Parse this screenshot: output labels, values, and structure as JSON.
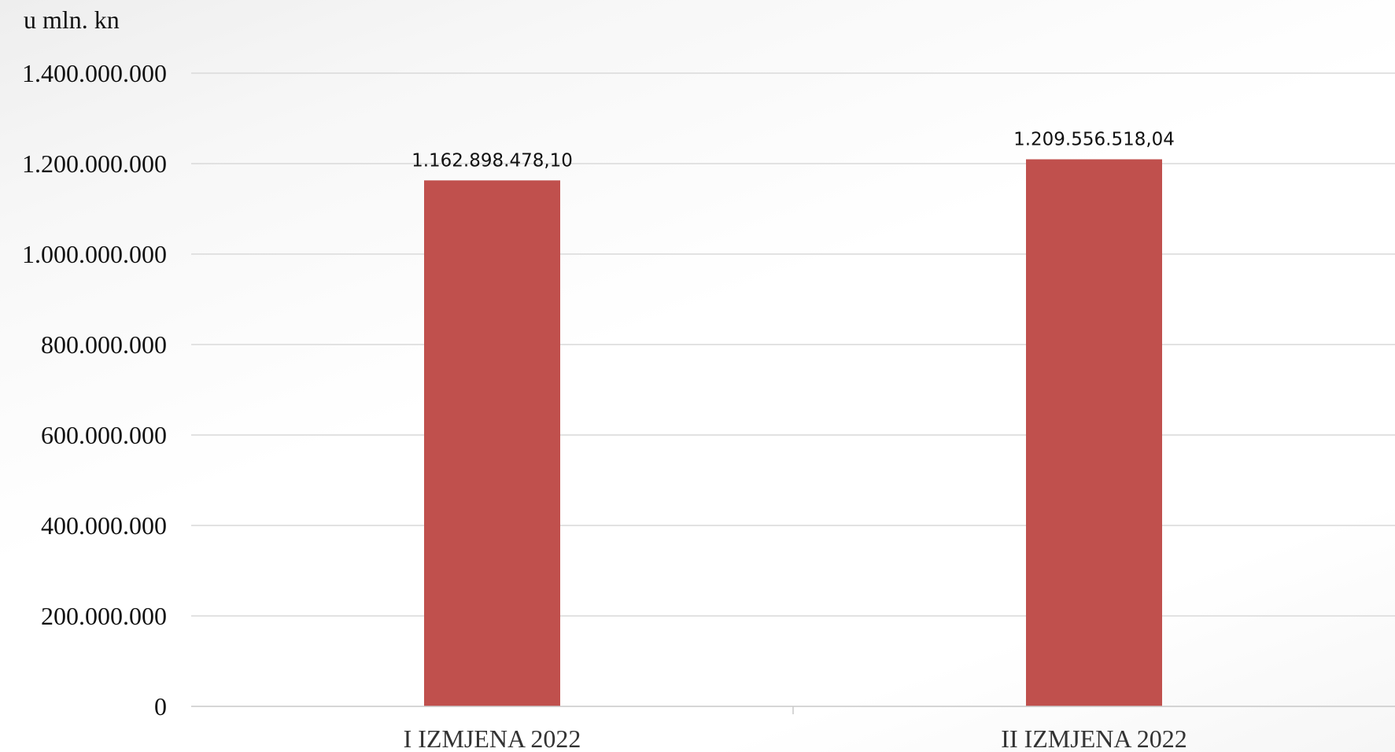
{
  "chart_data": {
    "type": "bar",
    "unit_label": "u mln. kn",
    "categories": [
      "I IZMJENA 2022",
      "II IZMJENA 2022"
    ],
    "values": [
      1162898478.1,
      1209556518.04
    ],
    "data_labels": [
      "1.162.898.478,10",
      "1.209.556.518,04"
    ],
    "ylim": [
      0,
      1400000000
    ],
    "y_ticks": [
      0,
      200000000,
      400000000,
      600000000,
      800000000,
      1000000000,
      1200000000,
      1400000000
    ],
    "y_tick_labels": [
      "0",
      "200.000.000",
      "400.000.000",
      "600.000.000",
      "800.000.000",
      "1.000.000.000",
      "1.200.000.000",
      "1.400.000.000"
    ],
    "grid": true,
    "legend": "none",
    "bar_color": "#c0504d",
    "gridline_color": "#d9d9d9"
  }
}
